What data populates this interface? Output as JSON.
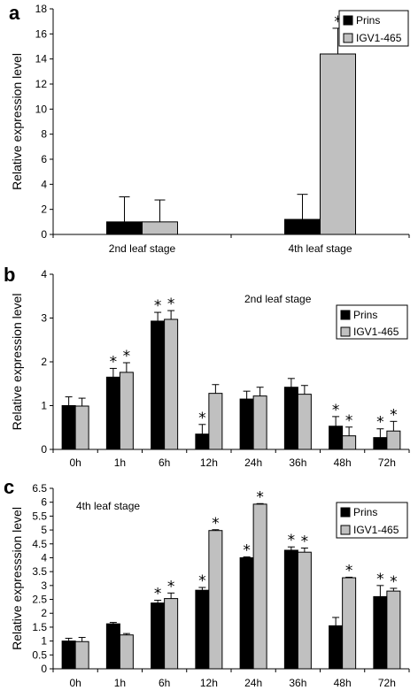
{
  "chart_data": [
    {
      "panel": "a",
      "type": "bar",
      "ylabel": "Relative expression level",
      "ylim": [
        0,
        18
      ],
      "yticks": [
        0,
        2,
        4,
        6,
        8,
        10,
        12,
        14,
        16,
        18
      ],
      "categories": [
        "2nd leaf stage",
        "4th leaf stage"
      ],
      "series": [
        {
          "name": "Prins",
          "color": "#000000",
          "values": [
            1.0,
            1.2
          ],
          "errors": [
            2.0,
            2.0
          ],
          "stars": [
            false,
            false
          ]
        },
        {
          "name": "IGV1-465",
          "color": "#c0c0c0",
          "values": [
            1.0,
            14.4
          ],
          "errors": [
            1.75,
            2.05
          ],
          "stars": [
            false,
            true
          ]
        }
      ],
      "legend": "top-right",
      "grid": false
    },
    {
      "panel": "b",
      "type": "bar",
      "ylabel": "Relative expression level",
      "annotation": "2nd leaf stage",
      "ylim": [
        0,
        4
      ],
      "yticks": [
        0,
        1,
        2,
        3,
        4
      ],
      "categories": [
        "0h",
        "1h",
        "6h",
        "12h",
        "24h",
        "36h",
        "48h",
        "72h"
      ],
      "series": [
        {
          "name": "Prins",
          "color": "#000000",
          "values": [
            1.0,
            1.65,
            2.93,
            0.35,
            1.15,
            1.42,
            0.53,
            0.27
          ],
          "errors": [
            0.2,
            0.2,
            0.2,
            0.22,
            0.18,
            0.2,
            0.22,
            0.2
          ],
          "stars": [
            false,
            true,
            true,
            true,
            false,
            false,
            true,
            true
          ]
        },
        {
          "name": "IGV1-465",
          "color": "#c0c0c0",
          "values": [
            0.99,
            1.76,
            2.97,
            1.28,
            1.22,
            1.26,
            0.31,
            0.42
          ],
          "errors": [
            0.18,
            0.22,
            0.2,
            0.2,
            0.2,
            0.2,
            0.2,
            0.22
          ],
          "stars": [
            false,
            true,
            true,
            false,
            false,
            false,
            true,
            true
          ]
        }
      ],
      "legend": "top-right",
      "grid": false
    },
    {
      "panel": "c",
      "type": "bar",
      "ylabel": "Relative expresssion level",
      "annotation": "4th leaf stage",
      "ylim": [
        0,
        6.5
      ],
      "yticks": [
        0,
        0.5,
        1,
        1.5,
        2,
        2.5,
        3,
        3.5,
        4,
        4.5,
        5,
        5.5,
        6,
        6.5
      ],
      "categories": [
        "0h",
        "1h",
        "6h",
        "12h",
        "24h",
        "36h",
        "48h",
        "72h"
      ],
      "series": [
        {
          "name": "Prins",
          "color": "#000000",
          "values": [
            1.0,
            1.62,
            2.37,
            2.83,
            4.0,
            4.27,
            1.55,
            2.6
          ],
          "errors": [
            0.1,
            0.05,
            0.1,
            0.1,
            0.03,
            0.12,
            0.3,
            0.4
          ],
          "stars": [
            false,
            false,
            true,
            true,
            true,
            true,
            false,
            true
          ]
        },
        {
          "name": "IGV1-465",
          "color": "#c0c0c0",
          "values": [
            0.98,
            1.22,
            2.53,
            4.98,
            5.93,
            4.2,
            3.28,
            2.8
          ],
          "errors": [
            0.15,
            0.05,
            0.2,
            0.03,
            0.02,
            0.15,
            0.02,
            0.1
          ],
          "stars": [
            false,
            false,
            true,
            true,
            true,
            true,
            true,
            true
          ]
        }
      ],
      "legend": "top-right",
      "grid": false
    }
  ]
}
